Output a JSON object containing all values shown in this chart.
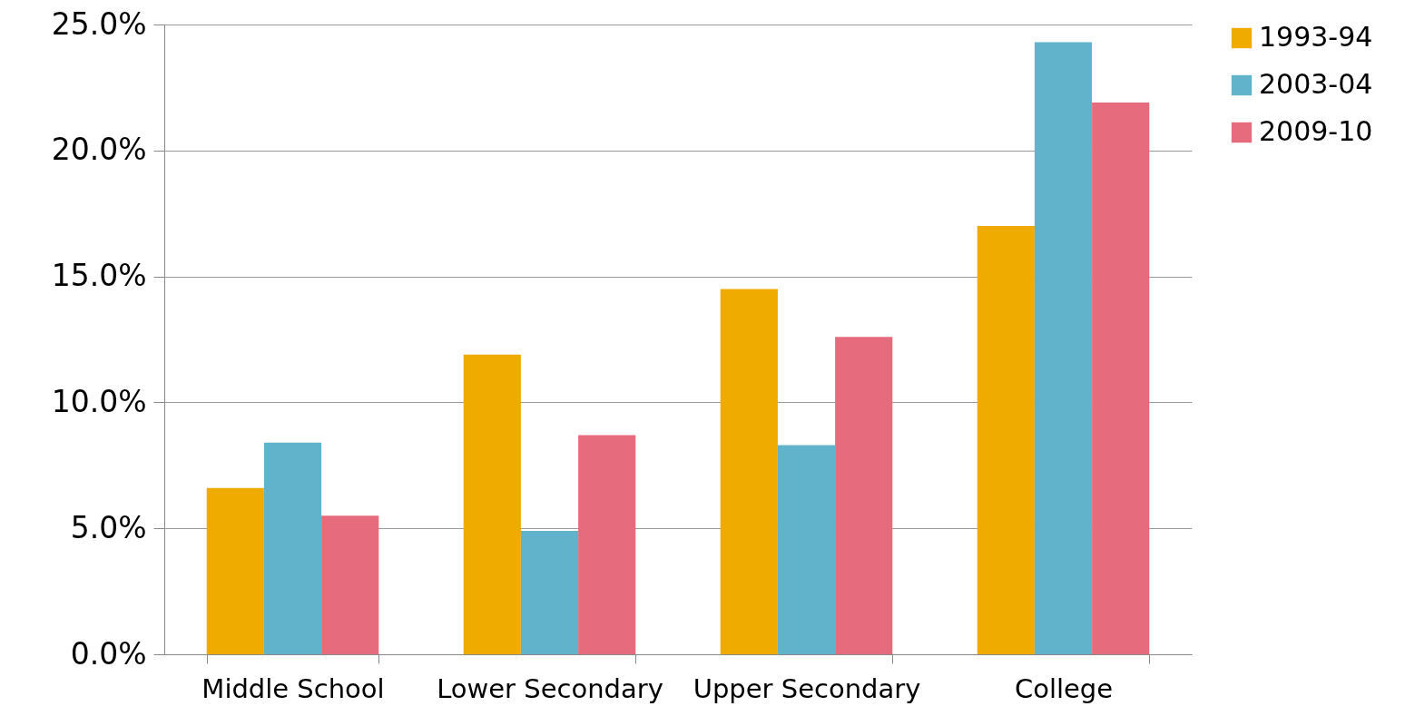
{
  "chart_data": {
    "type": "bar",
    "categories": [
      "Middle School",
      "Lower Secondary",
      "Upper Secondary",
      "College"
    ],
    "series": [
      {
        "name": "1993-94",
        "color": "#f0ab00",
        "values": [
          6.6,
          11.9,
          14.5,
          17.0
        ]
      },
      {
        "name": "2003-04",
        "color": "#60b3cb",
        "values": [
          8.4,
          4.9,
          8.3,
          24.3
        ]
      },
      {
        "name": "2009-10",
        "color": "#e66c7d",
        "values": [
          5.5,
          8.7,
          12.6,
          21.9
        ]
      }
    ],
    "ylim": [
      0,
      25
    ],
    "yticks": [
      {
        "value": 0,
        "label": "0.0%"
      },
      {
        "value": 5,
        "label": "5.0%"
      },
      {
        "value": 10,
        "label": "10.0%"
      },
      {
        "value": 15,
        "label": "15.0%"
      },
      {
        "value": 20,
        "label": "20.0%"
      },
      {
        "value": 25,
        "label": "25.0%"
      }
    ],
    "grid": "y",
    "legend": "right"
  }
}
